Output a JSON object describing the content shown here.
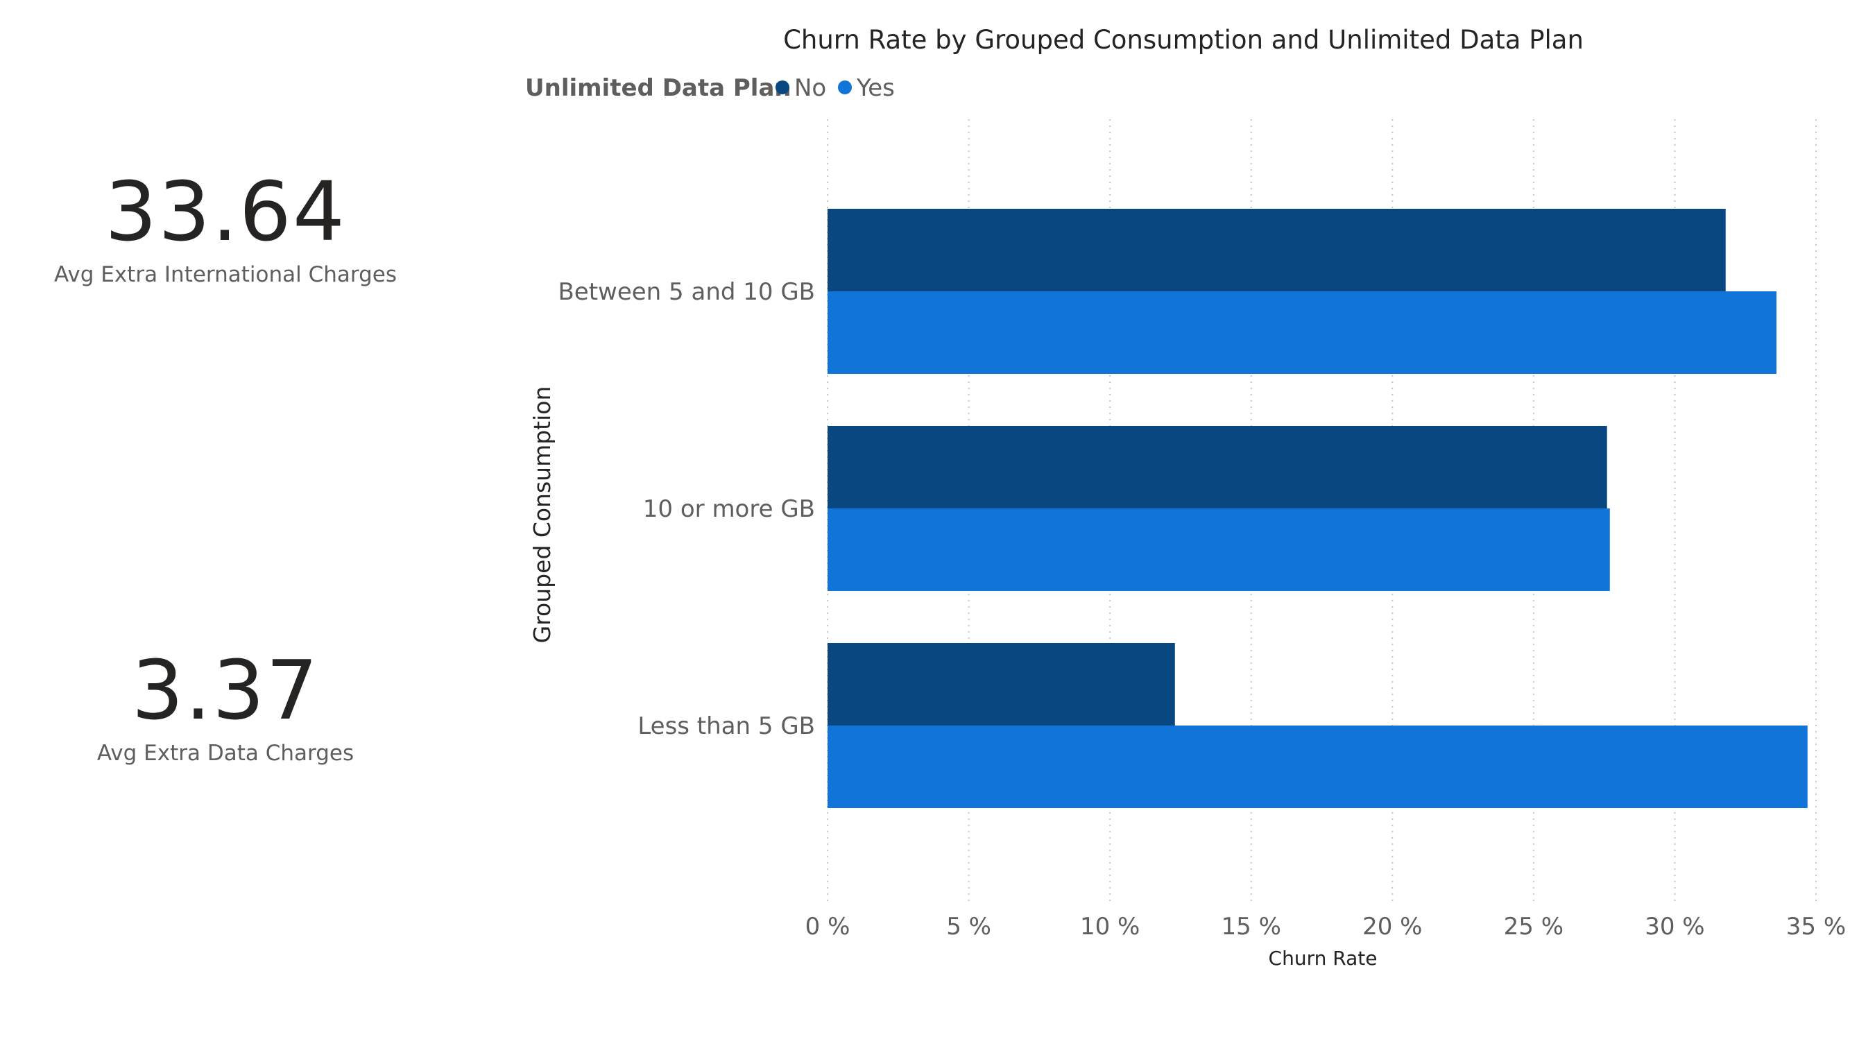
{
  "cards": [
    {
      "value": "33.64",
      "label": "Avg Extra International Charges"
    },
    {
      "value": "3.37",
      "label": "Avg Extra Data Charges"
    }
  ],
  "chart_data": {
    "type": "bar",
    "orientation": "horizontal",
    "title": "Churn Rate by Grouped Consumption and Unlimited Data Plan",
    "legend_title": "Unlimited Data Plan",
    "legend_position": "top-left",
    "xlabel": "Churn Rate",
    "ylabel": "Grouped Consumption",
    "categories": [
      "Between 5 and 10 GB",
      "10 or more GB",
      "Less than 5 GB"
    ],
    "series": [
      {
        "name": "No",
        "color": "#094780",
        "values": [
          31.8,
          27.6,
          12.3
        ]
      },
      {
        "name": "Yes",
        "color": "#1174d9",
        "values": [
          33.6,
          27.7,
          34.7
        ]
      }
    ],
    "xlim": [
      0,
      35
    ],
    "xticks": [
      0,
      5,
      10,
      15,
      20,
      25,
      30,
      35
    ],
    "xtick_labels": [
      "0 %",
      "5 %",
      "10 %",
      "15 %",
      "20 %",
      "25 %",
      "30 %",
      "35 %"
    ],
    "grid": "vertical dotted"
  }
}
